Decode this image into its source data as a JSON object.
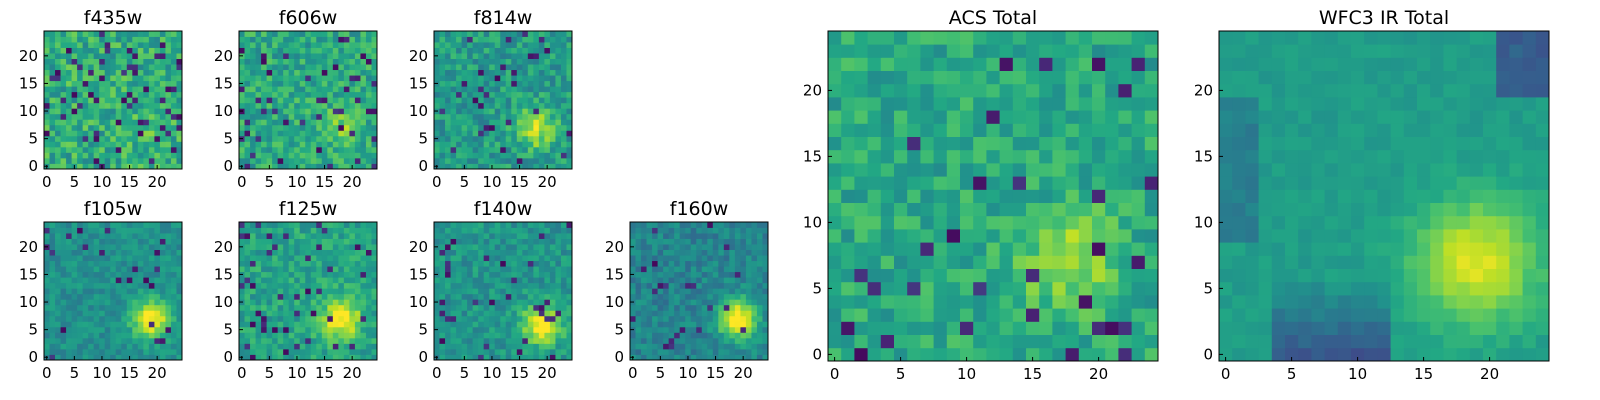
{
  "figure": {
    "colormap": "viridis",
    "background": "#ffffff"
  },
  "chart_data": [
    {
      "id": "f435w",
      "type": "heatmap",
      "title": "f435w",
      "grid_size": 25,
      "xlim": [
        0,
        24
      ],
      "ylim": [
        0,
        24
      ],
      "x_ticks": [
        "0",
        "5",
        "10",
        "15",
        "20"
      ],
      "y_ticks": [
        "0",
        "5",
        "10",
        "15",
        "20"
      ],
      "source_pixel": [
        19,
        7
      ],
      "peak_strength": 0.1,
      "noise_level": 0.34,
      "dark_fraction": 0.08,
      "level_mean": 0.62
    },
    {
      "id": "f606w",
      "type": "heatmap",
      "title": "f606w",
      "grid_size": 25,
      "xlim": [
        0,
        24
      ],
      "ylim": [
        0,
        24
      ],
      "x_ticks": [
        "0",
        "5",
        "10",
        "15",
        "20"
      ],
      "y_ticks": [
        "0",
        "5",
        "10",
        "15",
        "20"
      ],
      "source_pixel": [
        18,
        7
      ],
      "peak_strength": 0.2,
      "noise_level": 0.3,
      "dark_fraction": 0.07,
      "level_mean": 0.6
    },
    {
      "id": "f814w",
      "type": "heatmap",
      "title": "f814w",
      "grid_size": 25,
      "xlim": [
        0,
        24
      ],
      "ylim": [
        0,
        24
      ],
      "x_ticks": [
        "0",
        "5",
        "10",
        "15",
        "20"
      ],
      "y_ticks": [
        "0",
        "5",
        "10",
        "15",
        "20"
      ],
      "source_pixel": [
        18,
        7
      ],
      "peak_strength": 0.4,
      "noise_level": 0.28,
      "dark_fraction": 0.06,
      "level_mean": 0.55
    },
    {
      "id": "f105w",
      "type": "heatmap",
      "title": "f105w",
      "grid_size": 25,
      "xlim": [
        0,
        24
      ],
      "ylim": [
        0,
        24
      ],
      "x_ticks": [
        "0",
        "5",
        "10",
        "15",
        "20"
      ],
      "y_ticks": [
        "0",
        "5",
        "10",
        "15",
        "20"
      ],
      "source_pixel": [
        19,
        7
      ],
      "peak_strength": 0.55,
      "noise_level": 0.18,
      "dark_fraction": 0.04,
      "level_mean": 0.5
    },
    {
      "id": "f125w",
      "type": "heatmap",
      "title": "f125w",
      "grid_size": 25,
      "xlim": [
        0,
        24
      ],
      "ylim": [
        0,
        24
      ],
      "x_ticks": [
        "0",
        "5",
        "10",
        "15",
        "20"
      ],
      "y_ticks": [
        "0",
        "5",
        "10",
        "15",
        "20"
      ],
      "source_pixel": [
        18,
        7
      ],
      "peak_strength": 0.45,
      "noise_level": 0.24,
      "dark_fraction": 0.06,
      "level_mean": 0.58
    },
    {
      "id": "f140w",
      "type": "heatmap",
      "title": "f140w",
      "grid_size": 25,
      "xlim": [
        0,
        24
      ],
      "ylim": [
        0,
        24
      ],
      "x_ticks": [
        "0",
        "5",
        "10",
        "15",
        "20"
      ],
      "y_ticks": [
        "0",
        "5",
        "10",
        "15",
        "20"
      ],
      "source_pixel": [
        19,
        6
      ],
      "peak_strength": 0.55,
      "noise_level": 0.22,
      "dark_fraction": 0.06,
      "level_mean": 0.52
    },
    {
      "id": "f160w",
      "type": "heatmap",
      "title": "f160w",
      "grid_size": 25,
      "xlim": [
        0,
        24
      ],
      "ylim": [
        0,
        24
      ],
      "x_ticks": [
        "0",
        "5",
        "10",
        "15",
        "20"
      ],
      "y_ticks": [
        "0",
        "5",
        "10",
        "15",
        "20"
      ],
      "source_pixel": [
        19,
        7
      ],
      "peak_strength": 0.6,
      "noise_level": 0.2,
      "dark_fraction": 0.05,
      "level_mean": 0.45
    },
    {
      "id": "acs-total",
      "type": "heatmap",
      "title": "ACS Total",
      "grid_size": 25,
      "xlim": [
        0,
        24
      ],
      "ylim": [
        0,
        24
      ],
      "x_ticks": [
        "0",
        "5",
        "10",
        "15",
        "20"
      ],
      "y_ticks": [
        "0",
        "5",
        "10",
        "15",
        "20"
      ],
      "source_pixel": [
        18,
        7
      ],
      "peak_strength": 0.3,
      "noise_level": 0.25,
      "dark_fraction": 0.05,
      "level_mean": 0.6
    },
    {
      "id": "wfc3-total",
      "type": "heatmap",
      "title": "WFC3 IR Total",
      "grid_size": 25,
      "xlim": [
        0,
        24
      ],
      "ylim": [
        0,
        24
      ],
      "x_ticks": [
        "0",
        "5",
        "10",
        "15",
        "20"
      ],
      "y_ticks": [
        "0",
        "5",
        "10",
        "15",
        "20"
      ],
      "source_pixel": [
        19,
        7
      ],
      "peak_strength": 0.55,
      "noise_level": 0.08,
      "dark_fraction": 0.0,
      "level_mean": 0.45
    }
  ]
}
